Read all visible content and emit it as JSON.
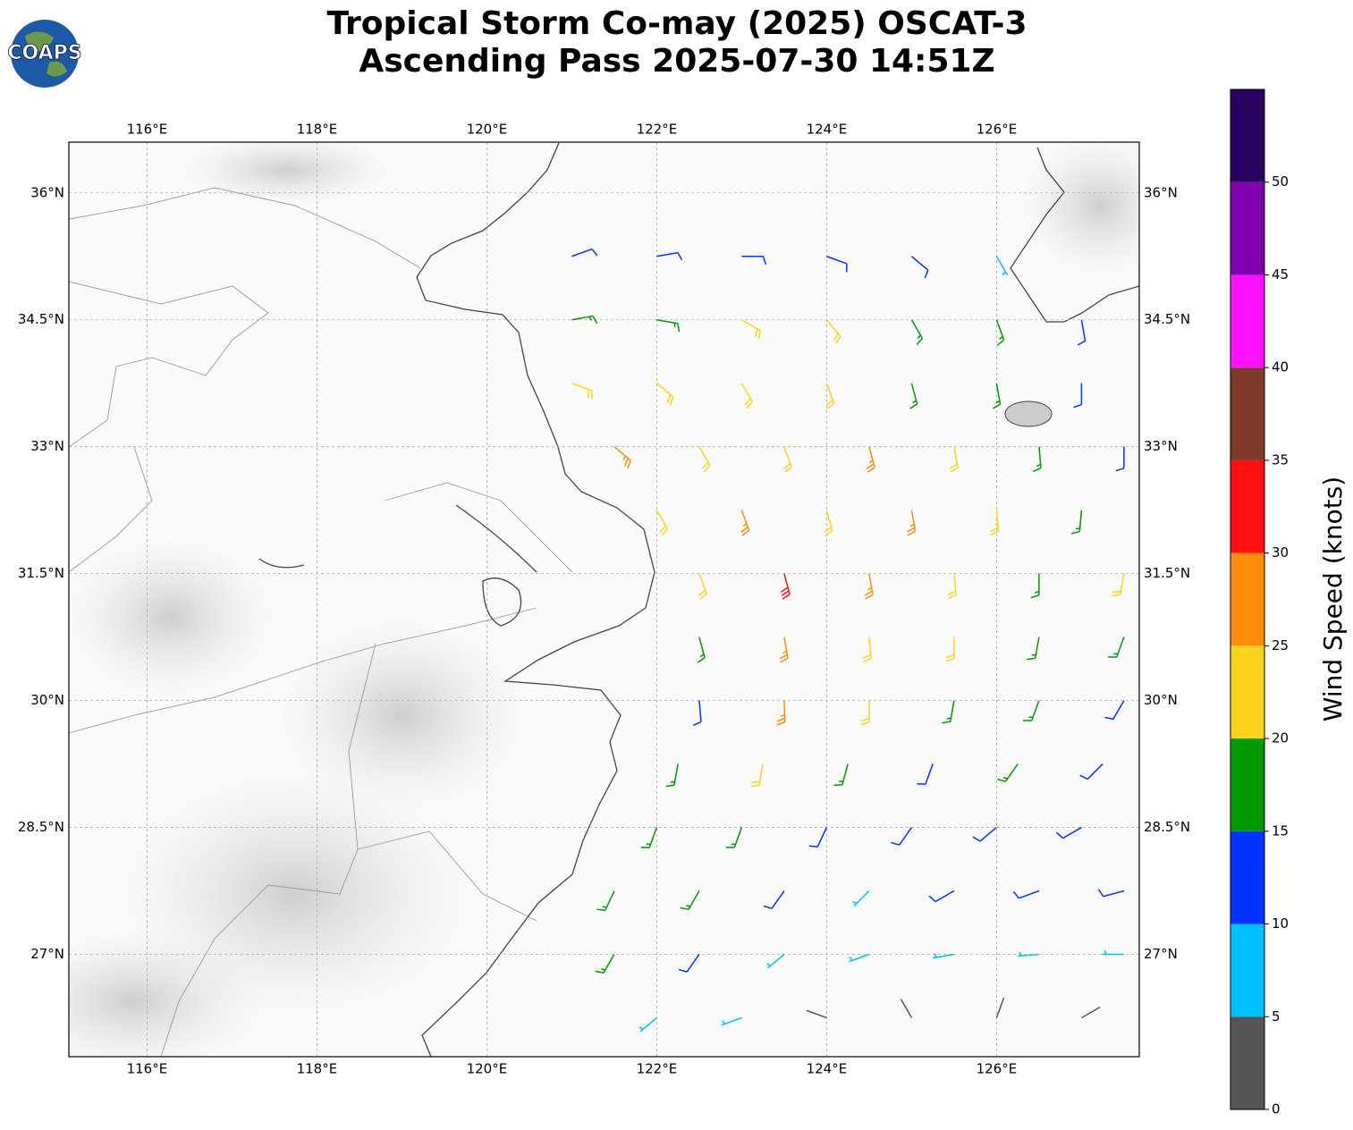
{
  "title": "Tropical Storm Co-may (2025) OSCAT-3",
  "subtitle": "Ascending Pass 2025-07-30 14:51Z",
  "logo_text": "COAPS",
  "map": {
    "xlim": [
      115.08,
      127.68
    ],
    "ylim": [
      25.79,
      36.6
    ],
    "xticks": [
      {
        "value": 116,
        "label": "116°E"
      },
      {
        "value": 118,
        "label": "118°E"
      },
      {
        "value": 120,
        "label": "120°E"
      },
      {
        "value": 122,
        "label": "122°E"
      },
      {
        "value": 124,
        "label": "124°E"
      },
      {
        "value": 126,
        "label": "126°E"
      }
    ],
    "yticks": [
      {
        "value": 27,
        "label": "27°N"
      },
      {
        "value": 28.5,
        "label": "28.5°N"
      },
      {
        "value": 30,
        "label": "30°N"
      },
      {
        "value": 31.5,
        "label": "31.5°N"
      },
      {
        "value": 33,
        "label": "33°N"
      },
      {
        "value": 34.5,
        "label": "34.5°N"
      },
      {
        "value": 36,
        "label": "36°N"
      }
    ],
    "grid": true
  },
  "wind_barbs": [
    {
      "lat": 35.25,
      "lon": [
        121,
        122,
        123,
        124,
        125,
        126
      ],
      "speed": [
        12,
        14,
        13,
        12,
        10,
        8
      ],
      "direction": [
        70,
        80,
        90,
        110,
        130,
        150
      ]
    },
    {
      "lat": 34.5,
      "lon": [
        121,
        122,
        123,
        124,
        125,
        126,
        127
      ],
      "speed": [
        18,
        19,
        21,
        20,
        17,
        15,
        13
      ],
      "direction": [
        80,
        100,
        120,
        140,
        150,
        160,
        170
      ]
    },
    {
      "lat": 33.75,
      "lon": [
        121,
        122,
        123,
        124,
        125,
        126,
        127
      ],
      "speed": [
        22,
        24,
        24,
        23,
        19,
        16,
        14
      ],
      "direction": [
        110,
        130,
        150,
        160,
        165,
        170,
        180
      ]
    },
    {
      "lat": 33.0,
      "lon": [
        121.5,
        122.5,
        123.5,
        124.5,
        125.5,
        126.5,
        127.5
      ],
      "speed": [
        27,
        24,
        22,
        26,
        22,
        18,
        14
      ],
      "direction": [
        130,
        150,
        160,
        165,
        170,
        175,
        180
      ]
    },
    {
      "lat": 32.25,
      "lon": [
        122,
        123,
        124,
        125,
        126,
        127
      ],
      "speed": [
        22,
        27,
        24,
        27,
        22,
        18
      ],
      "direction": [
        150,
        160,
        165,
        170,
        175,
        185
      ]
    },
    {
      "lat": 31.5,
      "lon": [
        122.5,
        123.5,
        124.5,
        125.5,
        126.5,
        127.5
      ],
      "speed": [
        21,
        31,
        28,
        24,
        19,
        22
      ],
      "direction": [
        160,
        165,
        170,
        175,
        180,
        190
      ]
    },
    {
      "lat": 30.75,
      "lon": [
        122.5,
        123.5,
        124.5,
        125.5,
        126.5,
        127.5
      ],
      "speed": [
        18,
        27,
        24,
        20,
        18,
        15
      ],
      "direction": [
        165,
        170,
        175,
        180,
        190,
        200
      ]
    },
    {
      "lat": 30.0,
      "lon": [
        122.5,
        123.5,
        124.5,
        125.5,
        126.5,
        127.5
      ],
      "speed": [
        14,
        26,
        23,
        17,
        16,
        14
      ],
      "direction": [
        175,
        178,
        180,
        190,
        200,
        210
      ]
    },
    {
      "lat": 29.25,
      "lon": [
        122.25,
        123.25,
        124.25,
        125.25,
        126.25,
        127.25
      ],
      "speed": [
        17,
        22,
        18,
        13,
        16,
        13
      ],
      "direction": [
        190,
        190,
        195,
        200,
        215,
        225
      ]
    },
    {
      "lat": 28.5,
      "lon": [
        122,
        123,
        124,
        125,
        126,
        127
      ],
      "speed": [
        18,
        17,
        14,
        11,
        12,
        12
      ],
      "direction": [
        200,
        200,
        205,
        215,
        230,
        240
      ]
    },
    {
      "lat": 27.75,
      "lon": [
        121.5,
        122.5,
        123.5,
        124.5,
        125.5,
        126.5,
        127.5
      ],
      "speed": [
        17,
        16,
        12,
        9,
        10,
        11,
        11
      ],
      "direction": [
        205,
        210,
        215,
        225,
        240,
        250,
        255
      ]
    },
    {
      "lat": 27.0,
      "lon": [
        121.5,
        122.5,
        123.5,
        124.5,
        125.5,
        126.5,
        127.5
      ],
      "speed": [
        16,
        13,
        9,
        8,
        9,
        9,
        8
      ],
      "direction": [
        210,
        215,
        230,
        250,
        260,
        265,
        270
      ]
    },
    {
      "lat": 26.25,
      "lon": [
        122,
        123,
        124,
        125,
        126,
        127
      ],
      "speed": [
        9,
        7,
        4,
        3,
        4,
        3
      ],
      "direction": [
        230,
        250,
        290,
        330,
        20,
        60
      ]
    }
  ],
  "colorbar": {
    "label": "Wind Speed (knots)",
    "lim": [
      0,
      55
    ],
    "ticks": [
      0,
      5,
      10,
      15,
      20,
      25,
      30,
      35,
      40,
      45,
      50
    ],
    "colors": [
      "#555555",
      "#00bfff",
      "#0033ff",
      "#009900",
      "#fcd31c",
      "#ff8c0a",
      "#ff1010",
      "#7f3a2a",
      "#ff10ff",
      "#8000b0",
      "#2a0060"
    ]
  }
}
